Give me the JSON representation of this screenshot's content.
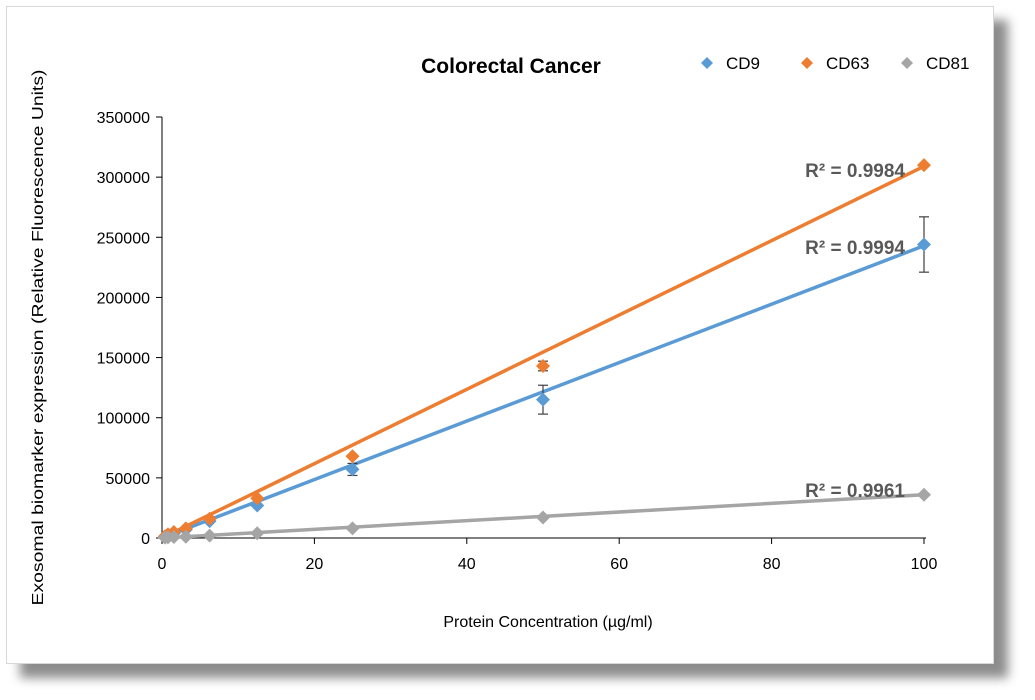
{
  "chart_data": {
    "type": "scatter",
    "title": "Colorectal Cancer",
    "xlabel": "Protein Concentration (µg/ml)",
    "ylabel": "Exosomal biomarker expression (Relative Fluorescence Units)",
    "xlim": [
      0,
      100
    ],
    "ylim": [
      0,
      350000
    ],
    "xticks": [
      0,
      20,
      40,
      60,
      80,
      100
    ],
    "yticks": [
      0,
      50000,
      100000,
      150000,
      200000,
      250000,
      300000,
      350000
    ],
    "grid": false,
    "legend_position": "top-right",
    "series": [
      {
        "name": "CD9",
        "color": "#5b9bd5",
        "trendline": [
          [
            0,
            0
          ],
          [
            100,
            243000
          ]
        ],
        "r2_label": "R² = 0.9994",
        "points": [
          {
            "x": 0.39,
            "y": 1000
          },
          {
            "x": 0.78,
            "y": 2000
          },
          {
            "x": 1.56,
            "y": 4000
          },
          {
            "x": 3.125,
            "y": 7000
          },
          {
            "x": 6.25,
            "y": 14000
          },
          {
            "x": 12.5,
            "y": 27000
          },
          {
            "x": 25,
            "y": 57000,
            "err": 5000
          },
          {
            "x": 50,
            "y": 115000,
            "err": 12000
          },
          {
            "x": 100,
            "y": 244000,
            "err": 23000
          }
        ]
      },
      {
        "name": "CD63",
        "color": "#ed7d31",
        "trendline": [
          [
            0,
            0
          ],
          [
            100,
            309000
          ]
        ],
        "r2_label": "R² = 0.9984",
        "points": [
          {
            "x": 0.39,
            "y": 1500
          },
          {
            "x": 0.78,
            "y": 3000
          },
          {
            "x": 1.56,
            "y": 5000
          },
          {
            "x": 3.125,
            "y": 8000
          },
          {
            "x": 6.25,
            "y": 16000
          },
          {
            "x": 12.5,
            "y": 33000
          },
          {
            "x": 25,
            "y": 68000
          },
          {
            "x": 50,
            "y": 143000,
            "err": 4000
          },
          {
            "x": 100,
            "y": 310000
          }
        ]
      },
      {
        "name": "CD81",
        "color": "#a5a5a5",
        "trendline": [
          [
            0,
            0
          ],
          [
            100,
            36000
          ]
        ],
        "r2_label": "R² = 0.9961",
        "points": [
          {
            "x": 0.39,
            "y": 300
          },
          {
            "x": 0.78,
            "y": 500
          },
          {
            "x": 1.56,
            "y": 800
          },
          {
            "x": 3.125,
            "y": 1000
          },
          {
            "x": 6.25,
            "y": 2000
          },
          {
            "x": 12.5,
            "y": 4000
          },
          {
            "x": 25,
            "y": 8000
          },
          {
            "x": 50,
            "y": 17000
          },
          {
            "x": 100,
            "y": 36000
          }
        ]
      }
    ]
  }
}
